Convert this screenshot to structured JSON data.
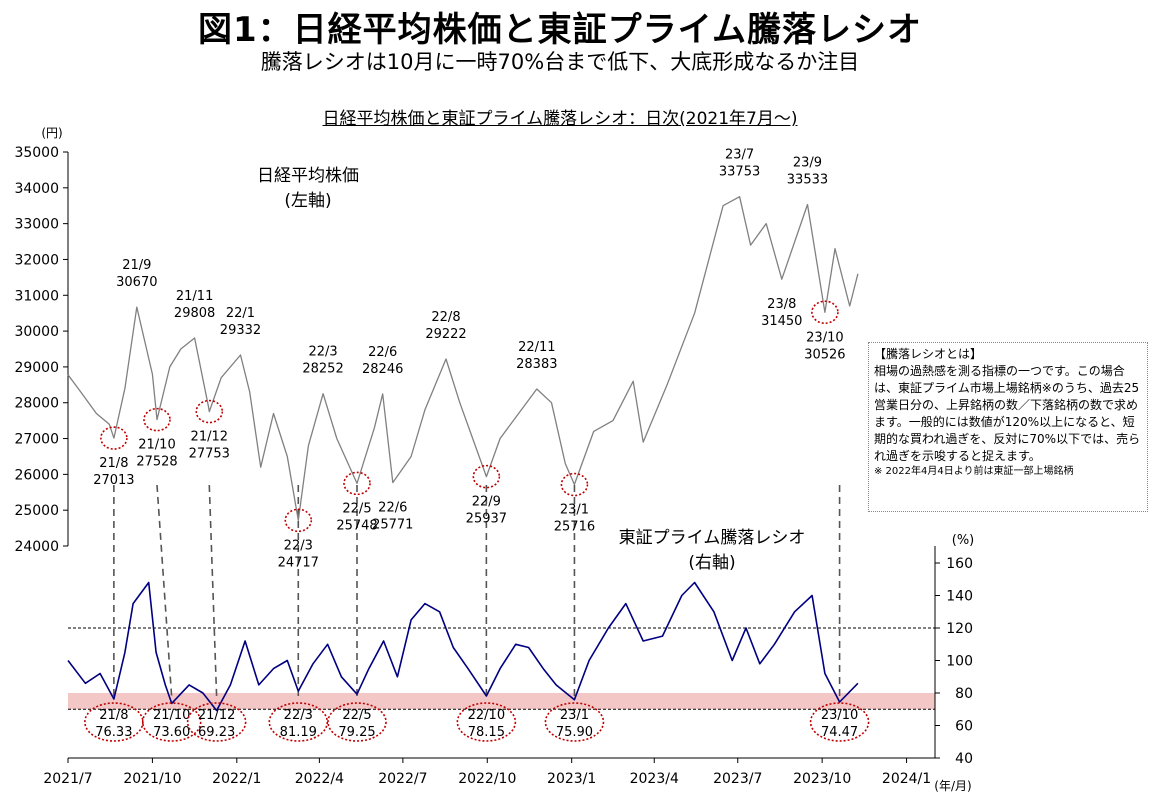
{
  "title": "図1：日経平均株価と東証プライム騰落レシオ",
  "subtitle": "騰落レシオは10月に一時70%台まで低下、大底形成なるか注目",
  "chart_title": "日経平均株価と東証プライム騰落レシオ：日次(2021年7月～)",
  "note": {
    "title": "【騰落レシオとは】",
    "body": "相場の過熱感を測る指標の一つです。この場合は、東証プライム市場上場銘柄※のうち、過去25営業日分の、上昇銘柄の数／下落銘柄の数で求めます。一般的には数値が120%以上になると、短期的な買われ過ぎを、反対に70%以下では、売られ過ぎを示唆すると捉えます。",
    "footnote": "※ 2022年4月4日より前は東証一部上場銘柄"
  },
  "chart_data": {
    "type": "line",
    "x_axis": {
      "unit_label": "(年/月)",
      "range": [
        "2021/7",
        "2024/2"
      ],
      "ticks": [
        "2021/7",
        "2021/10",
        "2022/1",
        "2022/4",
        "2022/7",
        "2022/10",
        "2023/1",
        "2023/4",
        "2023/7",
        "2023/10",
        "2024/1"
      ]
    },
    "left_axis": {
      "unit_label": "(円)",
      "range": [
        24000,
        35000
      ],
      "ticks": [
        "24000",
        "25000",
        "26000",
        "27000",
        "28000",
        "29000",
        "30000",
        "31000",
        "32000",
        "33000",
        "34000",
        "35000"
      ]
    },
    "right_axis": {
      "unit_label": "(%)",
      "range": [
        40,
        160
      ],
      "ticks": [
        "40",
        "60",
        "80",
        "100",
        "120",
        "140",
        "160"
      ]
    },
    "reference_lines": [
      120,
      70
    ],
    "shaded_band": {
      "from": 70,
      "to": 80,
      "color": "#f4c7c7"
    },
    "series": [
      {
        "name": "日経平均株価",
        "name_line2": "(左軸)",
        "axis": "left",
        "color": "#808080",
        "points": [
          [
            "2021/7/1",
            28780
          ],
          [
            "2021/7/15",
            28300
          ],
          [
            "2021/8/1",
            27700
          ],
          [
            "2021/8/15",
            27400
          ],
          [
            "2021/8/20",
            27013
          ],
          [
            "2021/9/1",
            28400
          ],
          [
            "2021/9/14",
            30670
          ],
          [
            "2021/10/1",
            28800
          ],
          [
            "2021/10/6",
            27528
          ],
          [
            "2021/10/20",
            29000
          ],
          [
            "2021/11/1",
            29500
          ],
          [
            "2021/11/16",
            29808
          ],
          [
            "2021/12/1",
            27900
          ],
          [
            "2021/12/2",
            27753
          ],
          [
            "2021/12/15",
            28700
          ],
          [
            "2022/1/5",
            29332
          ],
          [
            "2022/1/15",
            28300
          ],
          [
            "2022/1/27",
            26200
          ],
          [
            "2022/2/10",
            27700
          ],
          [
            "2022/2/25",
            26500
          ],
          [
            "2022/3/9",
            24717
          ],
          [
            "2022/3/20",
            26800
          ],
          [
            "2022/4/5",
            28252
          ],
          [
            "2022/4/20",
            27000
          ],
          [
            "2022/5/12",
            25748
          ],
          [
            "2022/5/31",
            27300
          ],
          [
            "2022/6/9",
            28246
          ],
          [
            "2022/6/20",
            25771
          ],
          [
            "2022/7/10",
            26500
          ],
          [
            "2022/7/25",
            27800
          ],
          [
            "2022/8/17",
            29222
          ],
          [
            "2022/9/1",
            28000
          ],
          [
            "2022/9/30",
            25937
          ],
          [
            "2022/10/15",
            27000
          ],
          [
            "2022/11/24",
            28383
          ],
          [
            "2022/12/10",
            28000
          ],
          [
            "2022/12/25",
            26300
          ],
          [
            "2023/1/4",
            25716
          ],
          [
            "2023/1/25",
            27200
          ],
          [
            "2023/2/15",
            27500
          ],
          [
            "2023/3/9",
            28600
          ],
          [
            "2023/3/20",
            26900
          ],
          [
            "2023/4/15",
            28500
          ],
          [
            "2023/5/15",
            30500
          ],
          [
            "2023/6/15",
            33500
          ],
          [
            "2023/7/3",
            33753
          ],
          [
            "2023/7/15",
            32400
          ],
          [
            "2023/8/1",
            33000
          ],
          [
            "2023/8/18",
            31450
          ],
          [
            "2023/9/15",
            33533
          ],
          [
            "2023/10/4",
            30526
          ],
          [
            "2023/10/15",
            32300
          ],
          [
            "2023/10/31",
            30700
          ],
          [
            "2023/11/9",
            31600
          ]
        ]
      },
      {
        "name": "東証プライム騰落レシオ",
        "name_line2": "(右軸)",
        "axis": "right",
        "color": "#000080",
        "points": [
          [
            "2021/7/1",
            100
          ],
          [
            "2021/7/20",
            86
          ],
          [
            "2021/8/5",
            92
          ],
          [
            "2021/8/20",
            76.33
          ],
          [
            "2021/9/1",
            105
          ],
          [
            "2021/9/10",
            135
          ],
          [
            "2021/9/27",
            148
          ],
          [
            "2021/10/5",
            105
          ],
          [
            "2021/10/15",
            85
          ],
          [
            "2021/10/22",
            73.6
          ],
          [
            "2021/11/10",
            85
          ],
          [
            "2021/11/25",
            80
          ],
          [
            "2021/12/10",
            69.23
          ],
          [
            "2021/12/25",
            85
          ],
          [
            "2022/1/10",
            112
          ],
          [
            "2022/1/25",
            85
          ],
          [
            "2022/2/10",
            95
          ],
          [
            "2022/2/25",
            100
          ],
          [
            "2022/3/9",
            81.19
          ],
          [
            "2022/3/25",
            98
          ],
          [
            "2022/4/10",
            110
          ],
          [
            "2022/4/25",
            90
          ],
          [
            "2022/5/12",
            79.25
          ],
          [
            "2022/5/25",
            95
          ],
          [
            "2022/6/10",
            112
          ],
          [
            "2022/6/25",
            90
          ],
          [
            "2022/7/10",
            125
          ],
          [
            "2022/7/25",
            135
          ],
          [
            "2022/8/10",
            130
          ],
          [
            "2022/8/25",
            108
          ],
          [
            "2022/9/10",
            95
          ],
          [
            "2022/9/30",
            78.15
          ],
          [
            "2022/10/15",
            95
          ],
          [
            "2022/11/1",
            110
          ],
          [
            "2022/11/15",
            108
          ],
          [
            "2022/12/1",
            95
          ],
          [
            "2022/12/15",
            85
          ],
          [
            "2023/1/4",
            75.9
          ],
          [
            "2023/1/20",
            100
          ],
          [
            "2023/2/10",
            120
          ],
          [
            "2023/3/1",
            135
          ],
          [
            "2023/3/20",
            112
          ],
          [
            "2023/4/10",
            115
          ],
          [
            "2023/5/1",
            140
          ],
          [
            "2023/5/15",
            148
          ],
          [
            "2023/6/5",
            130
          ],
          [
            "2023/6/25",
            100
          ],
          [
            "2023/7/10",
            120
          ],
          [
            "2023/7/25",
            98
          ],
          [
            "2023/8/10",
            110
          ],
          [
            "2023/9/1",
            130
          ],
          [
            "2023/9/20",
            140
          ],
          [
            "2023/10/4",
            92
          ],
          [
            "2023/10/20",
            74.47
          ],
          [
            "2023/11/9",
            86
          ]
        ]
      }
    ],
    "annotations": [
      {
        "series": 0,
        "date": "2021/9/14",
        "label": "21/9",
        "value": "30670",
        "pos": "above"
      },
      {
        "series": 0,
        "date": "2021/11/16",
        "label": "21/11",
        "value": "29808",
        "pos": "above"
      },
      {
        "series": 0,
        "date": "2022/1/5",
        "label": "22/1",
        "value": "29332",
        "pos": "above"
      },
      {
        "series": 0,
        "date": "2022/4/5",
        "label": "22/3",
        "value": "28252",
        "pos": "above"
      },
      {
        "series": 0,
        "date": "2022/6/9",
        "label": "22/6",
        "value": "28246",
        "pos": "above"
      },
      {
        "series": 0,
        "date": "2022/8/17",
        "label": "22/8",
        "value": "29222",
        "pos": "above"
      },
      {
        "series": 0,
        "date": "2022/11/24",
        "label": "22/11",
        "value": "28383",
        "pos": "above"
      },
      {
        "series": 0,
        "date": "2023/7/3",
        "label": "23/7",
        "value": "33753",
        "pos": "above"
      },
      {
        "series": 0,
        "date": "2023/9/15",
        "label": "23/9",
        "value": "33533",
        "pos": "above"
      },
      {
        "series": 0,
        "date": "2021/8/20",
        "label": "21/8",
        "value": "27013",
        "pos": "below",
        "circle": true
      },
      {
        "series": 0,
        "date": "2021/10/6",
        "label": "21/10",
        "value": "27528",
        "pos": "below",
        "circle": true
      },
      {
        "series": 0,
        "date": "2021/12/2",
        "label": "21/12",
        "value": "27753",
        "pos": "below",
        "circle": true
      },
      {
        "series": 0,
        "date": "2022/3/9",
        "label": "22/3",
        "value": "24717",
        "pos": "below",
        "circle": true
      },
      {
        "series": 0,
        "date": "2022/5/12",
        "label": "22/5",
        "value": "25748",
        "pos": "below",
        "circle": true
      },
      {
        "series": 0,
        "date": "2022/6/20",
        "label": "22/6",
        "value": "25771",
        "pos": "below"
      },
      {
        "series": 0,
        "date": "2022/9/30",
        "label": "22/9",
        "value": "25937",
        "pos": "below",
        "circle": true
      },
      {
        "series": 0,
        "date": "2023/1/4",
        "label": "23/1",
        "value": "25716",
        "pos": "below",
        "circle": true
      },
      {
        "series": 0,
        "date": "2023/8/18",
        "label": "23/8",
        "value": "31450",
        "pos": "below"
      },
      {
        "series": 0,
        "date": "2023/10/4",
        "label": "23/10",
        "value": "30526",
        "pos": "below",
        "circle": true
      },
      {
        "series": 1,
        "date": "2021/8/20",
        "label": "21/8",
        "value": "76.33",
        "circle": true
      },
      {
        "series": 1,
        "date": "2021/10/22",
        "label": "21/10",
        "value": "73.60",
        "circle": true
      },
      {
        "series": 1,
        "date": "2021/12/10",
        "label": "21/12",
        "value": "69.23",
        "circle": true
      },
      {
        "series": 1,
        "date": "2022/3/9",
        "label": "22/3",
        "value": "81.19",
        "circle": true
      },
      {
        "series": 1,
        "date": "2022/5/12",
        "label": "22/5",
        "value": "79.25",
        "circle": true
      },
      {
        "series": 1,
        "date": "2022/9/30",
        "label": "22/10",
        "value": "78.15",
        "circle": true
      },
      {
        "series": 1,
        "date": "2023/1/4",
        "label": "23/1",
        "value": "75.90",
        "circle": true
      },
      {
        "series": 1,
        "date": "2023/10/20",
        "label": "23/10",
        "value": "74.47",
        "circle": true
      }
    ],
    "connectors": [
      [
        "2021/8/20",
        "2021/8/20"
      ],
      [
        "2021/10/6",
        "2021/10/22"
      ],
      [
        "2021/12/2",
        "2021/12/10"
      ],
      [
        "2022/3/9",
        "2022/3/9"
      ],
      [
        "2022/5/12",
        "2022/5/12"
      ],
      [
        "2022/9/30",
        "2022/9/30"
      ],
      [
        "2023/1/4",
        "2023/1/4"
      ],
      [
        "2023/10/20",
        "2023/10/20"
      ]
    ]
  }
}
